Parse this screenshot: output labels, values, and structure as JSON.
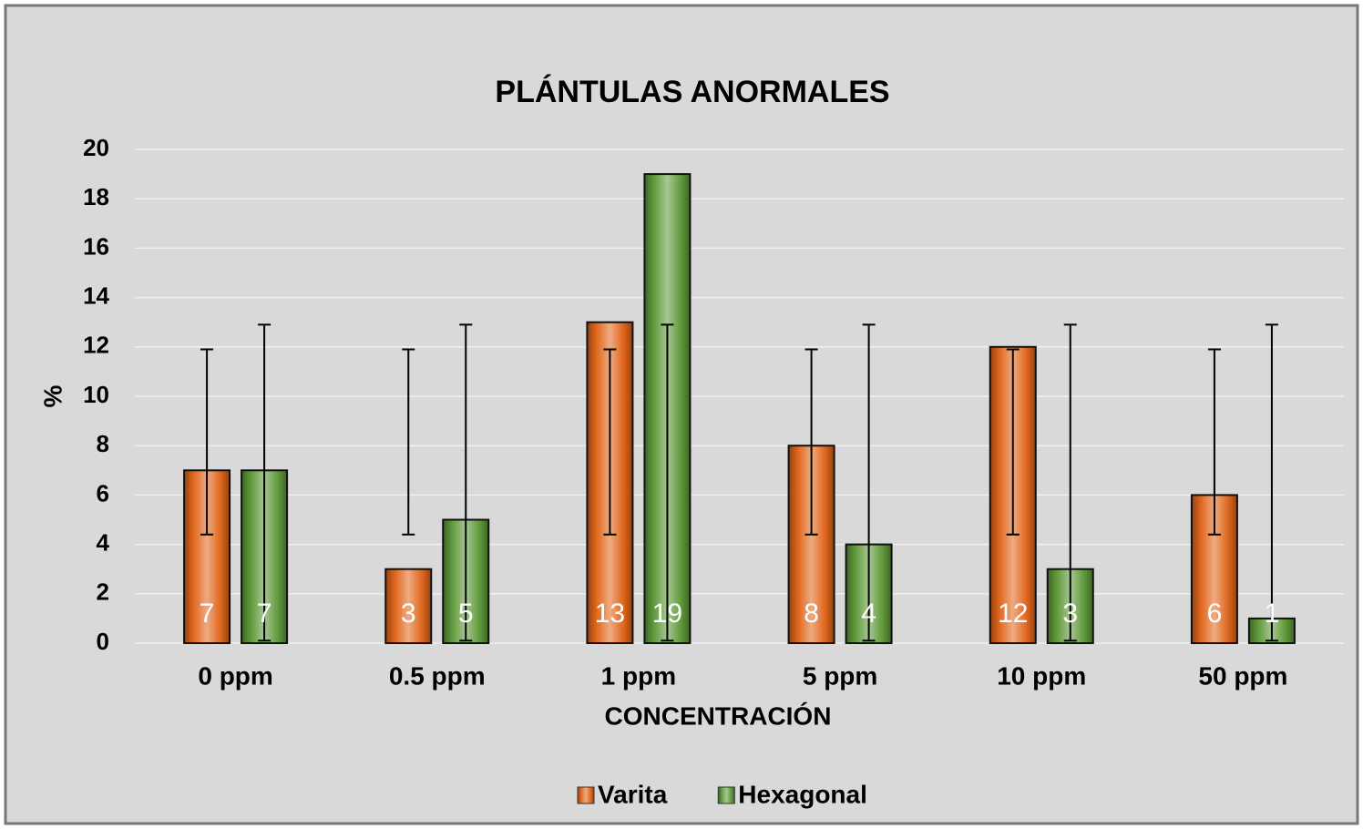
{
  "chart_data": {
    "type": "bar",
    "title": "PLÁNTULAS ANORMALES",
    "x_label": "CONCENTRACIÓN",
    "y_label": "%",
    "categories": [
      "0 ppm",
      "0.5 ppm",
      "1 ppm",
      "5 ppm",
      "10 ppm",
      "50 ppm"
    ],
    "series": [
      {
        "name": "Varita",
        "color": "#e0661c",
        "values": [
          7,
          3,
          13,
          8,
          12,
          6
        ],
        "error_low": [
          4.4,
          4.4,
          4.4,
          4.4,
          4.4,
          4.4
        ],
        "error_high": [
          11.9,
          11.9,
          11.9,
          11.9,
          11.9,
          11.9
        ]
      },
      {
        "name": "Hexagonal",
        "color": "#5f9a3a",
        "values": [
          7,
          5,
          19,
          4,
          3,
          1
        ],
        "error_low": [
          0.1,
          0.1,
          0.1,
          0.1,
          0.1,
          0.1
        ],
        "error_high": [
          12.9,
          12.9,
          12.9,
          12.9,
          12.9,
          12.9
        ]
      }
    ],
    "ylim": [
      0,
      20
    ],
    "yticks": [
      0,
      2,
      4,
      6,
      8,
      10,
      12,
      14,
      16,
      18,
      20
    ],
    "grid": true,
    "legend": "bottom"
  }
}
